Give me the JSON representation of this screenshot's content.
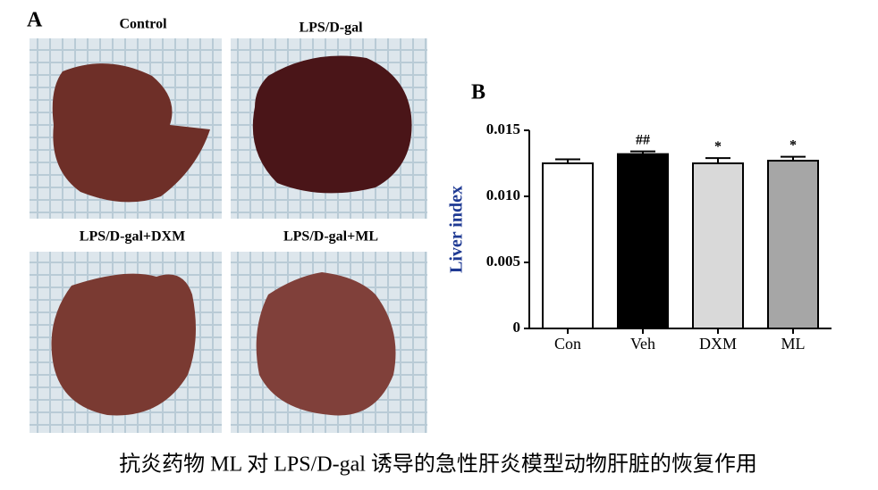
{
  "panel_a": {
    "label": "A",
    "photos": [
      "Control",
      "LPS/D-gal",
      "LPS/D-gal+DXM",
      "LPS/D-gal+ML"
    ]
  },
  "chart_data": {
    "type": "bar",
    "panel_label": "B",
    "ylabel": "Liver index",
    "categories": [
      "Con",
      "Veh",
      "DXM",
      "ML"
    ],
    "values": [
      0.0125,
      0.0132,
      0.0125,
      0.0127
    ],
    "errors": [
      0.0003,
      0.0002,
      0.0004,
      0.0003
    ],
    "colors": [
      "#ffffff",
      "#000000",
      "#d9d9d9",
      "#a6a6a6"
    ],
    "annotations": [
      null,
      "##",
      "*",
      "*"
    ],
    "ylim": [
      0,
      0.015
    ],
    "yticks": [
      0,
      0.005,
      {
        "value": 0.01,
        "label": "0.010"
      },
      0.015
    ]
  },
  "caption": "抗炎药物 ML 对 LPS/D-gal 诱导的急性肝炎模型动物肝脏的恢复作用"
}
